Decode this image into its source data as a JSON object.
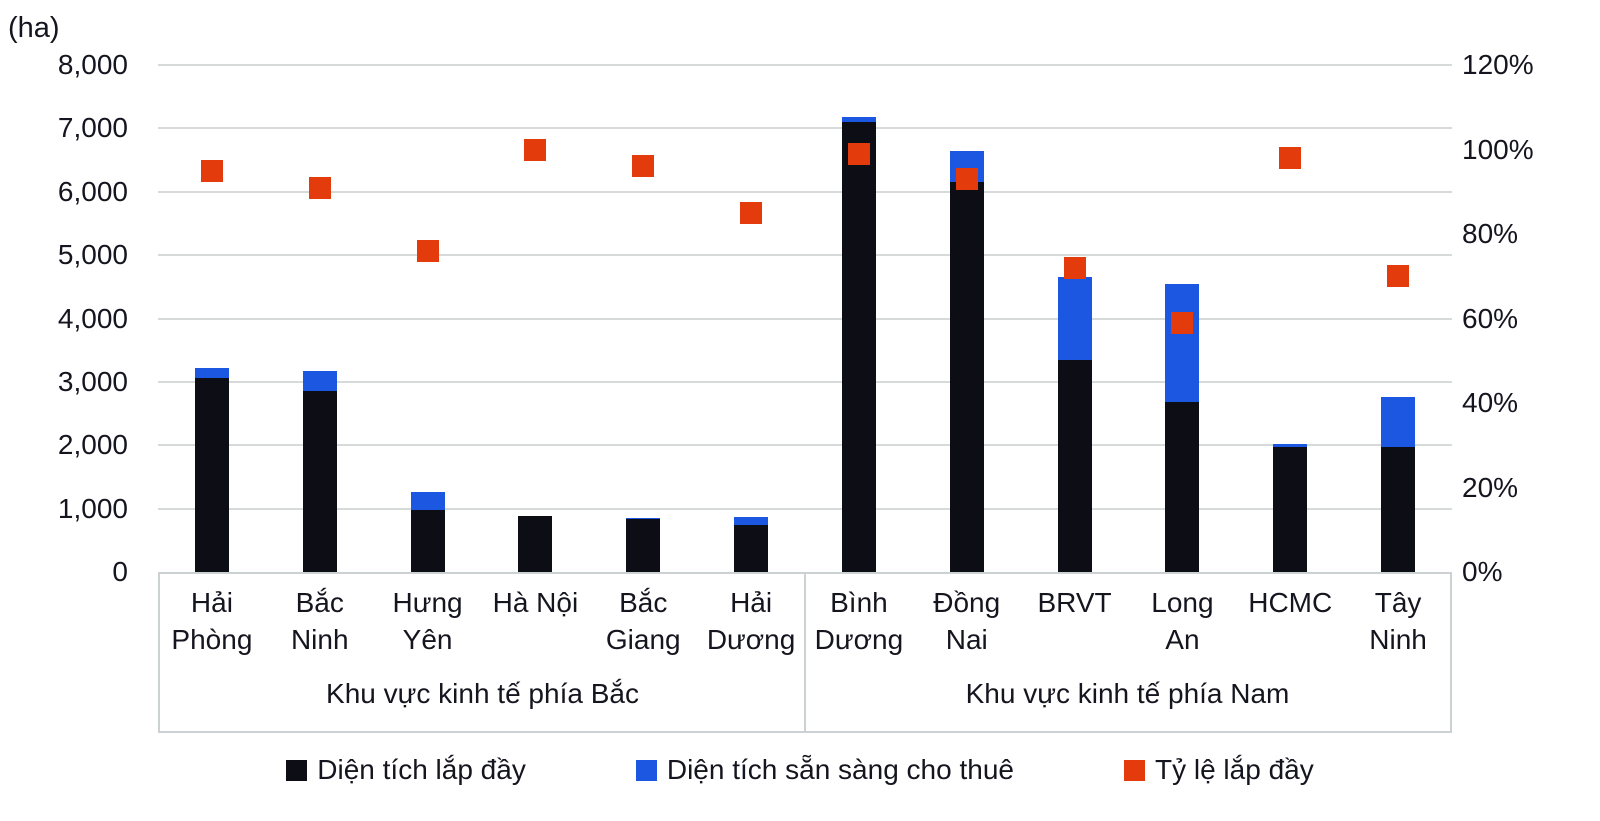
{
  "chart_data": {
    "type": "combo: stacked bar (left axis) + square scatter (right axis)",
    "title": "",
    "categories": [
      "Hải Phòng",
      "Bắc Ninh",
      "Hưng Yên",
      "Hà Nội",
      "Bắc Giang",
      "Hải Dương",
      "Bình Dương",
      "Đồng Nai",
      "BRVT",
      "Long An",
      "HCMC",
      "Tây Ninh"
    ],
    "category_lines": [
      [
        "Hải",
        "Phòng"
      ],
      [
        "Bắc",
        "Ninh"
      ],
      [
        "Hưng",
        "Yên"
      ],
      [
        "Hà Nội"
      ],
      [
        "Bắc",
        "Giang"
      ],
      [
        "Hải",
        "Dương"
      ],
      [
        "Bình",
        "Dương"
      ],
      [
        "Đồng",
        "Nai"
      ],
      [
        "BRVT"
      ],
      [
        "Long",
        "An"
      ],
      [
        "HCMC"
      ],
      [
        "Tây",
        "Ninh"
      ]
    ],
    "groups": [
      {
        "label": "Khu vực kinh tế phía Bắc",
        "categories": [
          "Hải Phòng",
          "Bắc Ninh",
          "Hưng Yên",
          "Hà Nội",
          "Bắc Giang",
          "Hải Dương"
        ]
      },
      {
        "label": "Khu vực kinh tế phía Nam",
        "categories": [
          "Bình Dương",
          "Đồng Nai",
          "BRVT",
          "Long An",
          "HCMC",
          "Tây Ninh"
        ]
      }
    ],
    "series": [
      {
        "name": "Diện tích lắp đầy",
        "type": "bar-stacked",
        "axis": "left",
        "color": "#0d0d15",
        "values": [
          3060,
          2860,
          980,
          890,
          830,
          750,
          7100,
          6150,
          3350,
          2680,
          1980,
          1970
        ]
      },
      {
        "name": "Diện tích sẵn sàng cho thuê",
        "type": "bar-stacked",
        "axis": "left",
        "color": "#1b57e0",
        "values": [
          160,
          310,
          280,
          0,
          30,
          120,
          80,
          490,
          1300,
          1860,
          40,
          790
        ]
      },
      {
        "name": "Tỷ lệ lắp đầy",
        "type": "scatter-square",
        "axis": "right",
        "color": "#e43b0d",
        "unit": "%",
        "values": [
          95,
          91,
          76,
          100,
          96,
          85,
          99,
          93,
          72,
          59,
          98,
          70
        ]
      }
    ],
    "left_axis": {
      "label": "(ha)",
      "min": 0,
      "max": 8000,
      "tick_step": 1000,
      "tick_labels": [
        "0",
        "1,000",
        "2,000",
        "3,000",
        "4,000",
        "5,000",
        "6,000",
        "7,000",
        "8,000"
      ]
    },
    "right_axis": {
      "min": 0,
      "max": 120,
      "tick_step": 20,
      "tick_labels": [
        "0%",
        "20%",
        "40%",
        "60%",
        "80%",
        "100%",
        "120%"
      ]
    },
    "grid": "horizontal gridlines on, from left axis",
    "legend_position": "bottom"
  },
  "colors": {
    "occupied_bar": "#0d0d15",
    "ready_bar": "#1b57e0",
    "rate_marker": "#e43b0d",
    "gridline": "#d7dadb",
    "box_border": "#ccd1d4",
    "text": "#15151f",
    "background": "#ffffff"
  }
}
